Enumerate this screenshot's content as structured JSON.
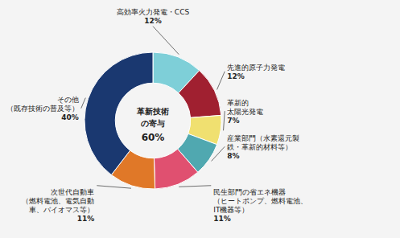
{
  "chart_data": {
    "type": "donut",
    "categories": [
      "高効率火力発電・CCS",
      "先進的原子力発電",
      "革新的\n太陽光発電",
      "産業部門（水素還元製\n鉄・革新的材料等）",
      "民生部門の省エネ機器\n（ヒートポンプ、燃料電池、\nIT機器等）",
      "次世代自動車\n（燃料電池、電気自動\n車、バイオマス等）",
      "その他\n（既存技術の普及等）"
    ],
    "values": [
      12,
      12,
      7,
      8,
      11,
      11,
      40
    ],
    "value_labels": [
      "12%",
      "12%",
      "7%",
      "8%",
      "11%",
      "11%",
      "40%"
    ],
    "colors": [
      "#7ecfd8",
      "#a02030",
      "#f0e070",
      "#50a8b0",
      "#e05070",
      "#e07828",
      "#1a3870"
    ],
    "annotations": [
      "革新技術",
      "の寄与",
      "60%"
    ],
    "data_labels": true
  }
}
